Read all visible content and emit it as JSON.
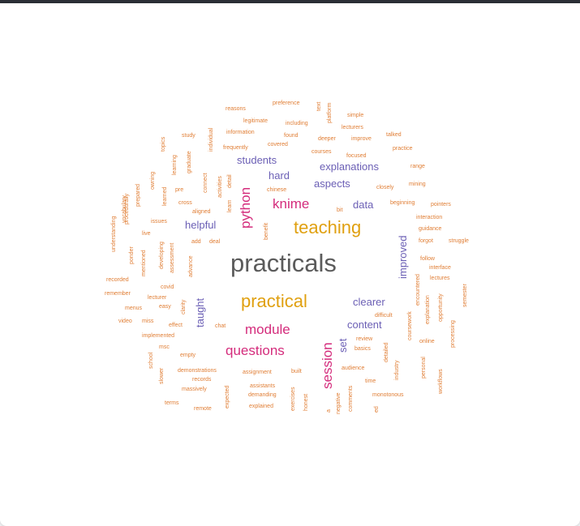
{
  "colors": {
    "gray": "#5b5b5b",
    "orange": "#e0801a",
    "gold": "#e0a010",
    "pink": "#d42c7c",
    "purple": "#6b5fb5",
    "small": "#e07e35"
  },
  "words": {
    "w0": "practicals",
    "w1": "teaching",
    "w2": "practical",
    "w3": "knime",
    "w4": "python",
    "w5": "module",
    "w6": "questions",
    "w7": "session",
    "w8": "students",
    "w9": "hard",
    "w10": "explanations",
    "w11": "aspects",
    "w12": "data",
    "w13": "helpful",
    "w14": "improved",
    "w15": "clearer",
    "w16": "content",
    "w17": "taught",
    "w18": "set",
    "w19": "preference",
    "w20": "reasons",
    "w21": "legitimate",
    "w22": "including",
    "w23": "simple",
    "w24": "lecturers",
    "w25": "study",
    "w26": "information",
    "w27": "found",
    "w28": "deeper",
    "w29": "improve",
    "w30": "talked",
    "w31": "frequently",
    "w32": "covered",
    "w33": "courses",
    "w34": "focused",
    "w35": "practice",
    "w36": "range",
    "w37": "closely",
    "w38": "mining",
    "w39": "chinese",
    "w40": "pre",
    "w41": "cross",
    "w42": "aligned",
    "w43": "issues",
    "w44": "live",
    "w45": "add",
    "w46": "deal",
    "w47": "bit",
    "w48": "beginning",
    "w49": "pointers",
    "w50": "interaction",
    "w51": "guidance",
    "w52": "forgot",
    "w53": "struggle",
    "w54": "follow",
    "w55": "interface",
    "w56": "lectures",
    "w57": "recorded",
    "w58": "covid",
    "w59": "remember",
    "w60": "lecturer",
    "w61": "menus",
    "w62": "easy",
    "w63": "video",
    "w64": "miss",
    "w65": "effect",
    "w66": "chat",
    "w67": "implemented",
    "w68": "msc",
    "w69": "empty",
    "w70": "demonstrations",
    "w71": "records",
    "w72": "massively",
    "w73": "assignment",
    "w74": "built",
    "w75": "assistants",
    "w76": "demanding",
    "w77": "explained",
    "w78": "terms",
    "w79": "remote",
    "w80": "audience",
    "w81": "time",
    "w82": "monotonous",
    "w83": "review",
    "w84": "basics",
    "w85": "difficult",
    "w86": "online",
    "w87": "topics",
    "w88": "individual",
    "w89": "graduate",
    "w90": "learning",
    "w91": "owning",
    "w92": "prepared",
    "w93": "learned",
    "w94": "connect",
    "w95": "activities",
    "w96": "detail",
    "w97": "learn",
    "w98": "vocabulary",
    "w99": "procedurally",
    "w100": "understanding",
    "w101": "ponder",
    "w102": "mentioned",
    "w103": "developing",
    "w104": "assessment",
    "w105": "advance",
    "w106": "clarity",
    "w107": "benefit",
    "w108": "text",
    "w109": "platform",
    "w110": "coursework",
    "w111": "encountered",
    "w112": "explanation",
    "w113": "opportunity",
    "w114": "semester",
    "w115": "processing",
    "w116": "personal",
    "w117": "workflows",
    "w118": "industry",
    "w119": "detailed",
    "w120": "school",
    "w121": "slower",
    "w122": "expected",
    "w123": "exercises",
    "w124": "honest",
    "w125": "negative",
    "w126": "comments",
    "w127": "ed",
    "w128": "a"
  }
}
